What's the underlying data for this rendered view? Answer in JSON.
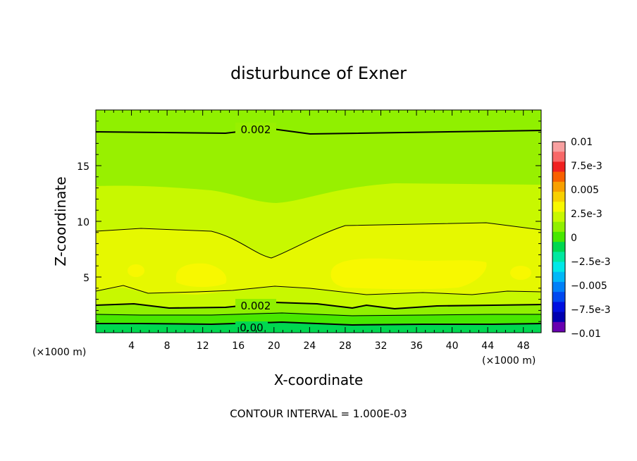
{
  "chart_data": {
    "type": "heatmap",
    "title": "disturbunce of Exner",
    "xlabel": "X-coordinate",
    "ylabel": "Z-coordinate",
    "x_unit": "(×1000 m)",
    "z_unit": "(×1000 m)",
    "x_ticks": [
      "4",
      "8",
      "12",
      "16",
      "20",
      "24",
      "28",
      "32",
      "36",
      "40",
      "44",
      "48"
    ],
    "y_ticks": [
      "5",
      "10",
      "15"
    ],
    "xlim": [
      0,
      50
    ],
    "ylim": [
      0,
      20
    ],
    "colorbar": {
      "labels": [
        "0.01",
        "7.5e-3",
        "0.005",
        "2.5e-3",
        "0",
        "−2.5e-3",
        "−0.005",
        "−7.5e-3",
        "−0.01"
      ],
      "range": [
        -0.01,
        0.01
      ],
      "colors": [
        "#f8a0a0",
        "#f86868",
        "#f02020",
        "#f86000",
        "#f8a000",
        "#f8d000",
        "#f8f800",
        "#c8f800",
        "#90f000",
        "#48e800",
        "#00d850",
        "#00e8a0",
        "#00e8e8",
        "#00b8f8",
        "#0080f8",
        "#0048f0",
        "#0010e0",
        "#0000b0",
        "#6800b0"
      ]
    },
    "contour_labels": [
      "0.002",
      "0.002",
      "0.00"
    ],
    "contour_interval_text": "CONTOUR INTERVAL = 1.000E-03"
  }
}
